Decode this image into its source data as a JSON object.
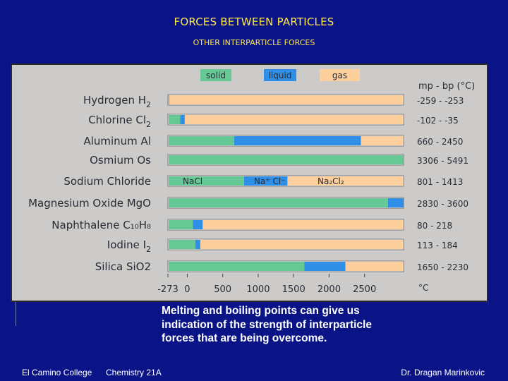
{
  "slide": {
    "title": "FORCES BETWEEN PARTICLES",
    "subtitle": "OTHER INTERPARTICLE FORCES",
    "caption": "Melting and boiling points can give us indication of the strength of interparticle forces that are being overcome.",
    "footer_left": "El Camino College",
    "footer_center": "Chemistry 21A",
    "footer_right": "Dr. Dragan Marinkovic"
  },
  "colors": {
    "background": "#0a1487",
    "title": "#ffe84a",
    "solid": "#66c894",
    "liquid": "#2f8fe6",
    "gas": "#fccf9c",
    "panel": "#cdcbc9"
  },
  "chart_data": {
    "type": "bar",
    "orientation": "horizontal-stacked-ranges",
    "legend": [
      "solid",
      "liquid",
      "gas"
    ],
    "legend_placement": "top",
    "header": "mp - bp (°C)",
    "xlabel_unit": "°C",
    "xlim": [
      -273,
      2700
    ],
    "xticks": [
      "-273",
      "0",
      "500",
      "1000",
      "1500",
      "2000",
      "2500"
    ],
    "xtick_values": [
      -273,
      0,
      500,
      1000,
      1500,
      2000,
      2500
    ],
    "categories": [
      {
        "name": "Hydrogen",
        "formula": "H",
        "sub": "2",
        "range": "-259 - -253",
        "mp": -259,
        "bp": -253
      },
      {
        "name": "Chlorine",
        "formula": "Cl",
        "sub": "2",
        "range": "-102 - -35",
        "mp": -102,
        "bp": -35
      },
      {
        "name": "Aluminum",
        "formula": "Al",
        "sub": "",
        "range": "660 - 2450",
        "mp": 660,
        "bp": 2450
      },
      {
        "name": "Osmium",
        "formula": "Os",
        "sub": "",
        "range": "3306 - 5491",
        "mp": 3306,
        "bp": 5491
      },
      {
        "name": "Sodium Chloride",
        "formula": "",
        "sub": "",
        "range": "801 - 1413",
        "mp": 801,
        "bp": 1413,
        "segment_labels": {
          "solid": "NaCl",
          "liquid": "Na⁺ Cl⁻",
          "gas": "Na₂Cl₂"
        }
      },
      {
        "name": "Magnesium Oxide",
        "formula": "MgO",
        "sub": "",
        "range": "2830 - 3600",
        "mp": 2830,
        "bp": 3600
      },
      {
        "name": "Naphthalene",
        "formula": "C₁₀H₈",
        "sub": "",
        "range": "80 - 218",
        "mp": 80,
        "bp": 218
      },
      {
        "name": "Iodine",
        "formula": "I",
        "sub": "2",
        "range": "113 - 184",
        "mp": 113,
        "bp": 184
      },
      {
        "name": "Silica",
        "formula": "SiO2",
        "sub": "",
        "range": "1650 - 2230",
        "mp": 1650,
        "bp": 2230
      }
    ]
  }
}
